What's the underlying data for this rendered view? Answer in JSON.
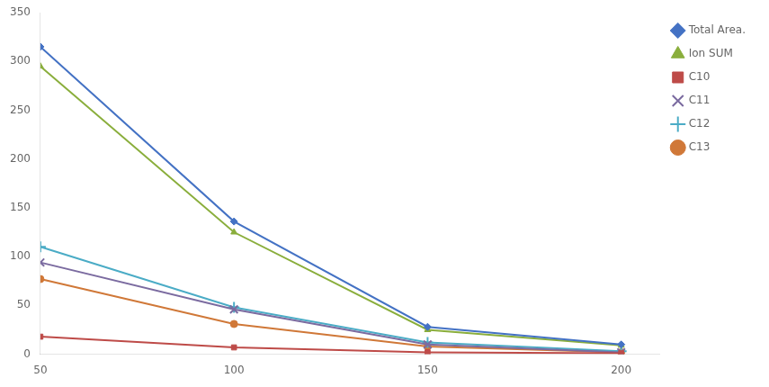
{
  "chart_data": {
    "type": "line",
    "x": [
      50,
      100,
      150,
      200
    ],
    "series": [
      {
        "name": "Total Area.",
        "color": "#4472C4",
        "marker": "diamond",
        "values": [
          315,
          136,
          28,
          10
        ]
      },
      {
        "name": "Ion SUM",
        "color": "#8AAE3C",
        "marker": "triangle",
        "values": [
          295,
          125,
          25,
          9
        ]
      },
      {
        "name": "C10",
        "color": "#BE4B48",
        "marker": "square",
        "values": [
          18,
          7,
          2,
          1
        ]
      },
      {
        "name": "C11",
        "color": "#7B6BA0",
        "marker": "x",
        "values": [
          94,
          46,
          10,
          2
        ]
      },
      {
        "name": "C12",
        "color": "#4BACC6",
        "marker": "plus",
        "values": [
          110,
          48,
          12,
          3
        ]
      },
      {
        "name": "C13",
        "color": "#D07838",
        "marker": "circle",
        "values": [
          77,
          31,
          8,
          2
        ]
      }
    ],
    "xlim": [
      50,
      210
    ],
    "ylim": [
      0,
      350
    ],
    "xticks": [
      50,
      100,
      150,
      200
    ],
    "yticks": [
      0,
      50,
      100,
      150,
      200,
      250,
      300,
      350
    ],
    "grid": false,
    "legend": "right"
  }
}
